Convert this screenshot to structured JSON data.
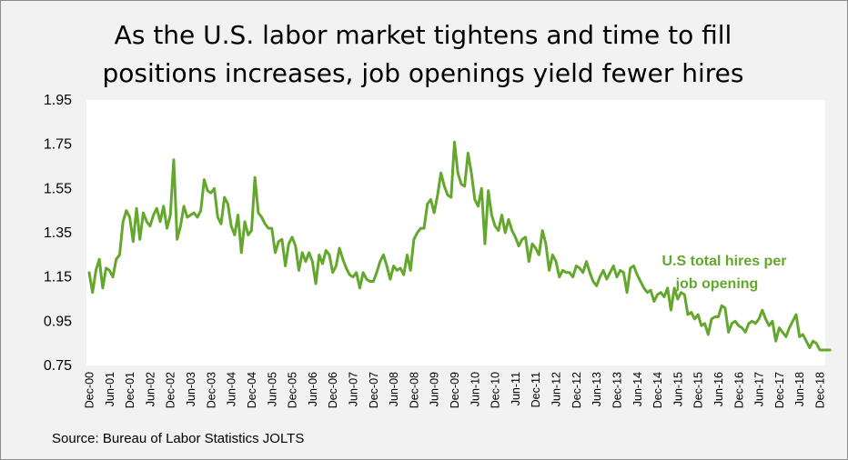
{
  "title_line1": "As the U.S. labor market tightens and time to fill",
  "title_line2": "positions increases, job openings yield fewer hires",
  "source": "Source: Bureau of Labor Statistics JOLTS",
  "chart_data": {
    "type": "line",
    "title": "As the U.S. labor market tightens and time to fill positions increases, job openings yield fewer hires",
    "xlabel": "",
    "ylabel": "",
    "ylim": [
      0.75,
      1.95
    ],
    "yticks": [
      "0.75",
      "0.95",
      "1.15",
      "1.35",
      "1.55",
      "1.75",
      "1.95"
    ],
    "xticks": [
      "Dec-00",
      "Jun-01",
      "Dec-01",
      "Jun-02",
      "Dec-02",
      "Jun-03",
      "Dec-03",
      "Jun-04",
      "Dec-04",
      "Jun-05",
      "Dec-05",
      "Jun-06",
      "Dec-06",
      "Jun-07",
      "Dec-07",
      "Jun-08",
      "Dec-08",
      "Jun-09",
      "Dec-09",
      "Jun-10",
      "Dec-10",
      "Jun-11",
      "Dec-11",
      "Jun-12",
      "Dec-12",
      "Jun-13",
      "Dec-13",
      "Jun-14",
      "Dec-14",
      "Jun-15",
      "Dec-15",
      "Jun-16",
      "Dec-16",
      "Jun-17",
      "Dec-17",
      "Jun-18",
      "Dec-18"
    ],
    "grid": false,
    "legend": "none",
    "annotation": [
      "U.S total hires per",
      "job opening"
    ],
    "color": "#63a82d",
    "series": [
      {
        "name": "U.S total hires per job opening",
        "start": "Dec-00",
        "frequency": "monthly",
        "values": [
          1.17,
          1.08,
          1.18,
          1.23,
          1.1,
          1.19,
          1.18,
          1.15,
          1.23,
          1.25,
          1.4,
          1.45,
          1.42,
          1.31,
          1.46,
          1.32,
          1.44,
          1.4,
          1.38,
          1.43,
          1.46,
          1.4,
          1.47,
          1.37,
          1.43,
          1.68,
          1.32,
          1.38,
          1.47,
          1.42,
          1.43,
          1.44,
          1.42,
          1.45,
          1.59,
          1.54,
          1.53,
          1.55,
          1.42,
          1.39,
          1.51,
          1.48,
          1.38,
          1.34,
          1.43,
          1.26,
          1.4,
          1.34,
          1.36,
          1.6,
          1.44,
          1.42,
          1.39,
          1.37,
          1.37,
          1.26,
          1.31,
          1.32,
          1.2,
          1.3,
          1.33,
          1.29,
          1.18,
          1.26,
          1.22,
          1.26,
          1.22,
          1.12,
          1.25,
          1.21,
          1.27,
          1.25,
          1.17,
          1.2,
          1.28,
          1.23,
          1.19,
          1.16,
          1.15,
          1.17,
          1.1,
          1.17,
          1.14,
          1.13,
          1.13,
          1.17,
          1.22,
          1.25,
          1.2,
          1.14,
          1.2,
          1.18,
          1.19,
          1.16,
          1.25,
          1.18,
          1.32,
          1.35,
          1.37,
          1.37,
          1.48,
          1.5,
          1.44,
          1.52,
          1.62,
          1.56,
          1.52,
          1.51,
          1.76,
          1.62,
          1.57,
          1.56,
          1.71,
          1.62,
          1.5,
          1.47,
          1.55,
          1.3,
          1.54,
          1.43,
          1.38,
          1.36,
          1.43,
          1.35,
          1.41,
          1.36,
          1.33,
          1.29,
          1.32,
          1.33,
          1.22,
          1.3,
          1.28,
          1.25,
          1.36,
          1.3,
          1.18,
          1.25,
          1.22,
          1.15,
          1.18,
          1.17,
          1.17,
          1.15,
          1.2,
          1.19,
          1.17,
          1.22,
          1.17,
          1.13,
          1.11,
          1.15,
          1.18,
          1.14,
          1.17,
          1.2,
          1.15,
          1.18,
          1.17,
          1.08,
          1.19,
          1.2,
          1.16,
          1.13,
          1.1,
          1.08,
          1.09,
          1.04,
          1.07,
          1.08,
          1.06,
          1.1,
          1.0,
          1.1,
          1.05,
          1.08,
          1.07,
          0.98,
          0.99,
          0.96,
          0.98,
          0.93,
          0.94,
          0.89,
          0.96,
          0.97,
          0.97,
          1.02,
          1.01,
          0.9,
          0.94,
          0.95,
          0.93,
          0.92,
          0.9,
          0.94,
          0.95,
          0.94,
          0.96,
          1.0,
          0.96,
          0.93,
          0.95,
          0.86,
          0.92,
          0.9,
          0.88,
          0.92,
          0.95,
          0.98,
          0.88,
          0.89,
          0.86,
          0.83,
          0.86,
          0.85,
          0.82,
          0.82,
          0.82,
          0.82
        ]
      }
    ]
  }
}
